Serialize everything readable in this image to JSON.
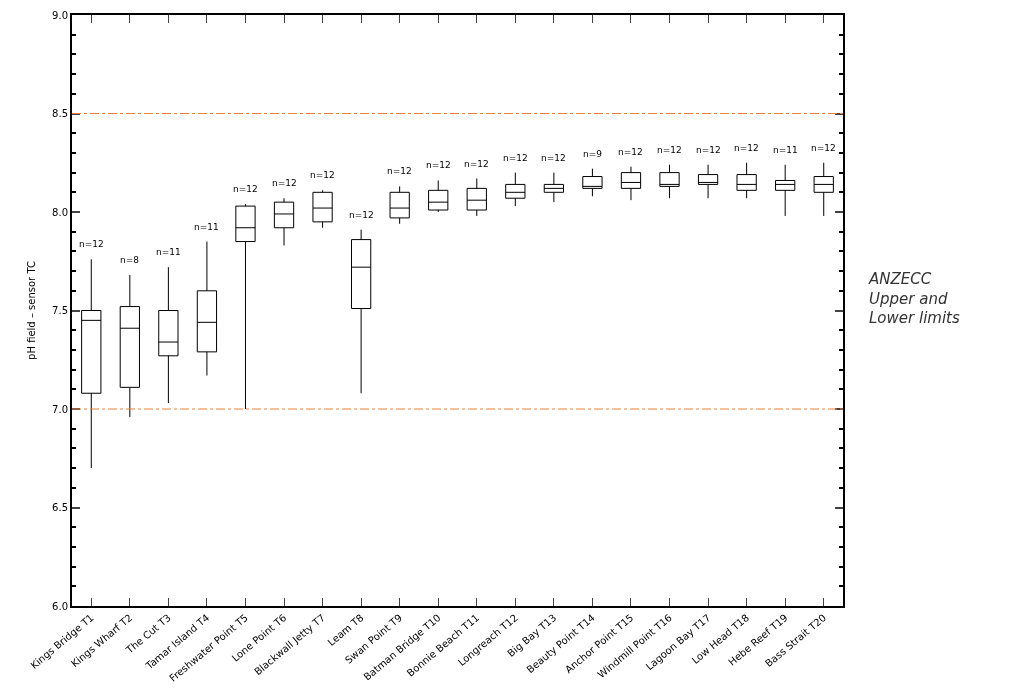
{
  "chart_data": {
    "type": "box",
    "ylabel": "pH field – sensor TC",
    "categories": [
      "Kings Bridge T1",
      "Kings Wharf T2",
      "The Cut T3",
      "Tamar Island T4",
      "Freshwater Point T5",
      "Lone Point T6",
      "Blackwall Jetty T7",
      "Leam T8",
      "Swan Point T9",
      "Batman Bridge T10",
      "Bonnie Beach T11",
      "Longreach T12",
      "Big Bay T13",
      "Beauty Point T14",
      "Anchor Point T15",
      "Windmill Point T16",
      "Lagoon Bay T17",
      "Low Head T18",
      "Hebe Reef T19",
      "Bass Strait T20"
    ],
    "boxes": [
      {
        "low": 6.7,
        "q1": 7.08,
        "median": 7.45,
        "q3": 7.5,
        "high": 7.76
      },
      {
        "low": 6.96,
        "q1": 7.11,
        "median": 7.41,
        "q3": 7.52,
        "high": 7.68
      },
      {
        "low": 7.03,
        "q1": 7.27,
        "median": 7.34,
        "q3": 7.5,
        "high": 7.72
      },
      {
        "low": 7.17,
        "q1": 7.29,
        "median": 7.44,
        "q3": 7.6,
        "high": 7.85
      },
      {
        "low": 7.0,
        "q1": 7.85,
        "median": 7.92,
        "q3": 8.03,
        "high": 8.04
      },
      {
        "low": 7.83,
        "q1": 7.92,
        "median": 7.99,
        "q3": 8.05,
        "high": 8.07
      },
      {
        "low": 7.92,
        "q1": 7.95,
        "median": 8.02,
        "q3": 8.1,
        "high": 8.11
      },
      {
        "low": 7.08,
        "q1": 7.51,
        "median": 7.72,
        "q3": 7.86,
        "high": 7.91
      },
      {
        "low": 7.94,
        "q1": 7.97,
        "median": 8.02,
        "q3": 8.1,
        "high": 8.13
      },
      {
        "low": 8.0,
        "q1": 8.01,
        "median": 8.05,
        "q3": 8.11,
        "high": 8.16
      },
      {
        "low": 7.98,
        "q1": 8.01,
        "median": 8.06,
        "q3": 8.12,
        "high": 8.17
      },
      {
        "low": 8.03,
        "q1": 8.07,
        "median": 8.1,
        "q3": 8.14,
        "high": 8.2
      },
      {
        "low": 8.05,
        "q1": 8.1,
        "median": 8.12,
        "q3": 8.14,
        "high": 8.2
      },
      {
        "low": 8.08,
        "q1": 8.12,
        "median": 8.13,
        "q3": 8.18,
        "high": 8.22
      },
      {
        "low": 8.06,
        "q1": 8.12,
        "median": 8.15,
        "q3": 8.2,
        "high": 8.23
      },
      {
        "low": 8.07,
        "q1": 8.13,
        "median": 8.14,
        "q3": 8.2,
        "high": 8.24
      },
      {
        "low": 8.07,
        "q1": 8.14,
        "median": 8.15,
        "q3": 8.19,
        "high": 8.24
      },
      {
        "low": 8.07,
        "q1": 8.11,
        "median": 8.14,
        "q3": 8.19,
        "high": 8.25
      },
      {
        "low": 7.98,
        "q1": 8.11,
        "median": 8.14,
        "q3": 8.16,
        "high": 8.24
      },
      {
        "low": 7.98,
        "q1": 8.1,
        "median": 8.14,
        "q3": 8.18,
        "high": 8.25
      }
    ],
    "color": "#000000",
    "ylim": [
      6.0,
      9.0
    ],
    "yticks": [
      {
        "value": 6.0,
        "label": "6.0"
      },
      {
        "value": 6.1,
        "label": null
      },
      {
        "value": 6.2,
        "label": null
      },
      {
        "value": 6.3,
        "label": null
      },
      {
        "value": 6.4,
        "label": null
      },
      {
        "value": 6.5,
        "label": "6.5"
      },
      {
        "value": 6.6,
        "label": null
      },
      {
        "value": 6.7,
        "label": null
      },
      {
        "value": 6.8,
        "label": null
      },
      {
        "value": 6.9,
        "label": null
      },
      {
        "value": 7.0,
        "label": "7.0"
      },
      {
        "value": 7.1,
        "label": null
      },
      {
        "value": 7.2,
        "label": null
      },
      {
        "value": 7.3,
        "label": null
      },
      {
        "value": 7.4,
        "label": null
      },
      {
        "value": 7.5,
        "label": "7.5"
      },
      {
        "value": 7.6,
        "label": null
      },
      {
        "value": 7.7,
        "label": null
      },
      {
        "value": 7.8,
        "label": null
      },
      {
        "value": 7.9,
        "label": null
      },
      {
        "value": 8.0,
        "label": "8.0"
      },
      {
        "value": 8.1,
        "label": null
      },
      {
        "value": 8.2,
        "label": null
      },
      {
        "value": 8.3,
        "label": null
      },
      {
        "value": 8.4,
        "label": null
      },
      {
        "value": 8.5,
        "label": "8.5"
      },
      {
        "value": 8.6,
        "label": null
      },
      {
        "value": 8.7,
        "label": null
      },
      {
        "value": 8.8,
        "label": null
      },
      {
        "value": 8.9,
        "label": null
      },
      {
        "value": 9.0,
        "label": "9.0"
      }
    ],
    "ref_lines": [
      {
        "axis": "y",
        "value": 8.5,
        "color": "#e8823c",
        "line_style": "dashdot"
      },
      {
        "axis": "y",
        "value": 7.0,
        "color": "#e8823c",
        "line_style": "dashdot"
      }
    ],
    "annotations": [
      {
        "text": "n=12",
        "x": "Kings Bridge T1",
        "y": 7.76
      },
      {
        "text": "n=8",
        "x": "Kings Wharf T2",
        "y": 7.68
      },
      {
        "text": "n=11",
        "x": "The Cut T3",
        "y": 7.72
      },
      {
        "text": "n=11",
        "x": "Tamar Island T4",
        "y": 7.85
      },
      {
        "text": "n=12",
        "x": "Freshwater Point T5",
        "y": 8.04
      },
      {
        "text": "n=12",
        "x": "Lone Point T6",
        "y": 8.07
      },
      {
        "text": "n=12",
        "x": "Blackwall Jetty T7",
        "y": 8.11
      },
      {
        "text": "n=12",
        "x": "Leam T8",
        "y": 7.91
      },
      {
        "text": "n=12",
        "x": "Swan Point T9",
        "y": 8.13
      },
      {
        "text": "n=12",
        "x": "Batman Bridge T10",
        "y": 8.16
      },
      {
        "text": "n=12",
        "x": "Bonnie Beach T11",
        "y": 8.17
      },
      {
        "text": "n=12",
        "x": "Longreach T12",
        "y": 8.2
      },
      {
        "text": "n=12",
        "x": "Big Bay T13",
        "y": 8.2
      },
      {
        "text": "n=9",
        "x": "Beauty Point T14",
        "y": 8.22
      },
      {
        "text": "n=12",
        "x": "Anchor Point T15",
        "y": 8.23
      },
      {
        "text": "n=12",
        "x": "Windmill Point T16",
        "y": 8.24
      },
      {
        "text": "n=12",
        "x": "Lagoon Bay T17",
        "y": 8.24
      },
      {
        "text": "n=12",
        "x": "Low Head T18",
        "y": 8.25
      },
      {
        "text": "n=11",
        "x": "Hebe Reef T19",
        "y": 8.24
      },
      {
        "text": "n=12",
        "x": "Bass Strait T20",
        "y": 8.25
      },
      "ANZECC\nUpper and\nLower limits"
    ]
  }
}
